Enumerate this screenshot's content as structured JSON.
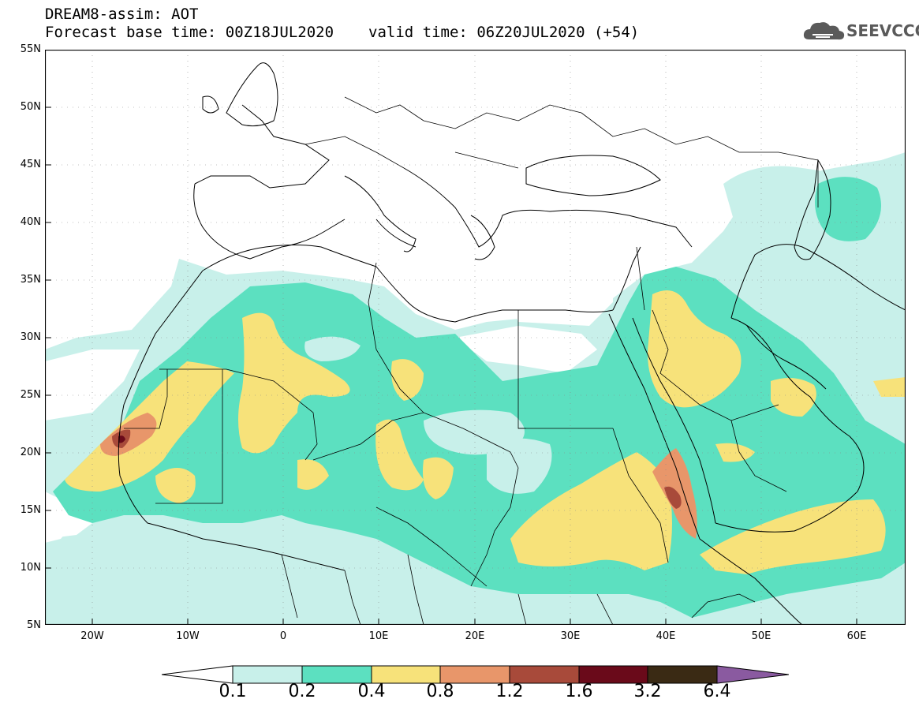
{
  "title": {
    "line1": "DREAM8-assim: AOT",
    "base_time": "Forecast base time: 00Z18JUL2020",
    "valid_time": "valid time: 06Z20JUL2020 (+54)"
  },
  "logo": {
    "text": "SEEVCCC",
    "icon": "cloud-icon"
  },
  "map": {
    "lat_labels": [
      "55N",
      "50N",
      "45N",
      "40N",
      "35N",
      "30N",
      "25N",
      "20N",
      "15N",
      "10N",
      "5N"
    ],
    "lon_labels": [
      "20W",
      "10W",
      "0",
      "10E",
      "20E",
      "30E",
      "40E",
      "50E",
      "60E"
    ],
    "lat_range": [
      5,
      55
    ],
    "lon_range": [
      -25,
      65
    ],
    "grid": "dotted"
  },
  "colorbar": {
    "labels": [
      "0.1",
      "0.2",
      "0.4",
      "0.8",
      "1.2",
      "1.6",
      "3.2",
      "6.4"
    ],
    "colors": [
      "#ffffff",
      "#c8f0ea",
      "#5ce0c0",
      "#f7e27a",
      "#e8966a",
      "#a84a3a",
      "#6a0a1a",
      "#3a2a14",
      "#8a5aa0"
    ]
  }
}
